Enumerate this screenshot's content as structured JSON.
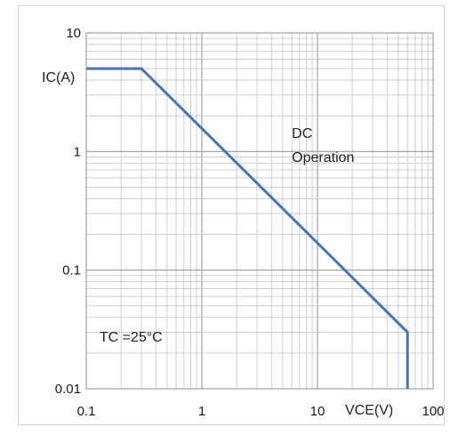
{
  "chart_data": {
    "type": "line",
    "title": "",
    "xlabel": "VCE(V)",
    "ylabel": "IC(A)",
    "x_scale": "log",
    "y_scale": "log",
    "xlim": [
      0.1,
      100
    ],
    "ylim": [
      0.01,
      10
    ],
    "x_ticks": [
      0.1,
      1,
      10,
      100
    ],
    "x_tick_labels": [
      "0.1",
      "1",
      "10",
      "100"
    ],
    "y_ticks": [
      0.01,
      0.1,
      1,
      10
    ],
    "y_tick_labels": [
      "0.01",
      "0.1",
      "1",
      "10"
    ],
    "grid": true,
    "series": [
      {
        "color": "#4472c4",
        "x": [
          0.1,
          0.3,
          60,
          60
        ],
        "y": [
          5,
          5,
          0.03,
          0.01
        ]
      }
    ],
    "annotations": [
      {
        "text_lines": [
          "DC",
          "Operation"
        ],
        "x": 6,
        "y": 1.3
      },
      {
        "text_lines": [
          "TC =25°C"
        ],
        "x": 0.13,
        "y": 0.025
      }
    ]
  }
}
